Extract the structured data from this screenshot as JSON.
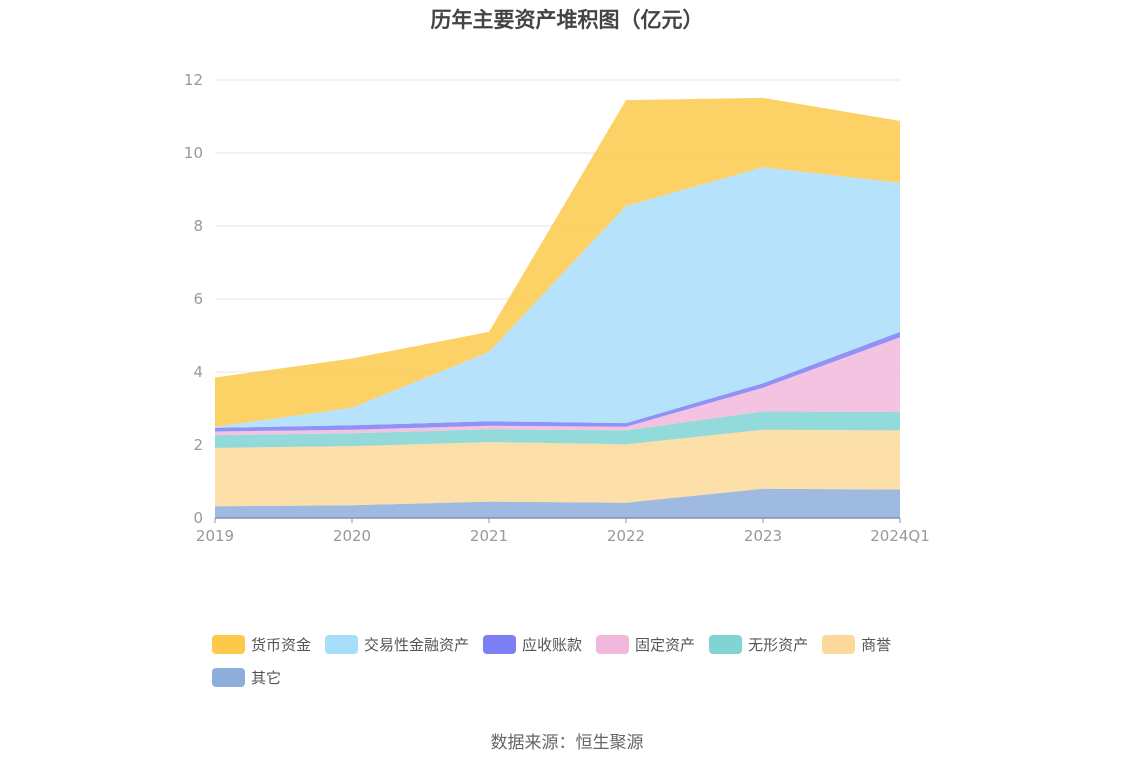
{
  "chart_data": {
    "type": "area",
    "stacked": true,
    "title": "历年主要资产堆积图（亿元）",
    "x": [
      "2019",
      "2020",
      "2021",
      "2022",
      "2023",
      "2024Q1"
    ],
    "ylim": [
      0,
      12
    ],
    "yticks": [
      0,
      2,
      4,
      6,
      8,
      10,
      12
    ],
    "grid": true,
    "legend_position": "bottom",
    "series": [
      {
        "name": "其它",
        "color": "#8eaedb",
        "values": [
          0.32,
          0.35,
          0.45,
          0.42,
          0.8,
          0.78
        ]
      },
      {
        "name": "商誉",
        "color": "#fcd99a",
        "values": [
          1.6,
          1.62,
          1.63,
          1.6,
          1.62,
          1.62
        ]
      },
      {
        "name": "无形资产",
        "color": "#80d4d4",
        "values": [
          0.35,
          0.35,
          0.35,
          0.38,
          0.5,
          0.5
        ]
      },
      {
        "name": "固定资产",
        "color": "#f2b8dc",
        "values": [
          0.1,
          0.1,
          0.1,
          0.1,
          0.65,
          2.05
        ]
      },
      {
        "name": "应收账款",
        "color": "#7d7ff5",
        "values": [
          0.1,
          0.12,
          0.12,
          0.1,
          0.12,
          0.15
        ]
      },
      {
        "name": "交易性金融资产",
        "color": "#a9defa",
        "values": [
          0.03,
          0.48,
          1.9,
          5.95,
          5.92,
          4.08
        ]
      },
      {
        "name": "货币资金",
        "color": "#fcc94a",
        "values": [
          1.35,
          1.35,
          0.55,
          2.9,
          1.9,
          1.7
        ]
      }
    ],
    "legend_rows": [
      [
        "货币资金",
        "交易性金融资产",
        "应收账款",
        "固定资产",
        "无形资产",
        "商誉"
      ],
      [
        "其它"
      ]
    ]
  },
  "source_text": "数据来源：恒生聚源"
}
